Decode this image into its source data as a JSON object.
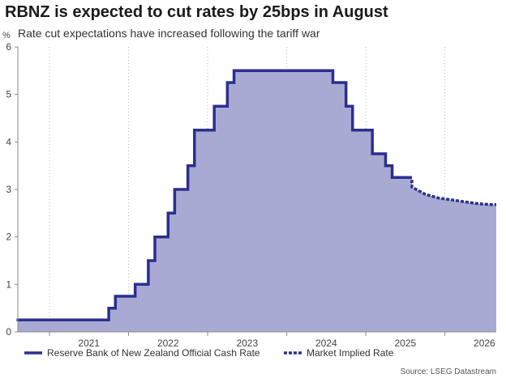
{
  "title": "RBNZ is expected to cut rates by 25bps in August",
  "subtitle": "Rate cut expectations have increased following the tariff war",
  "source": "Source: LSEG Datastream",
  "chart_data": {
    "type": "line",
    "title": "RBNZ is expected to cut rates by 25bps in August",
    "subtitle": "Rate cut expectations have increased following the tariff war",
    "y_unit": "%",
    "ylim": [
      0,
      6
    ],
    "yticks": [
      0,
      1,
      2,
      3,
      4,
      5,
      6
    ],
    "xlim": [
      2020.6,
      2026.65
    ],
    "x_tick_labels": [
      "2021",
      "2022",
      "2023",
      "2024",
      "2025",
      "2026"
    ],
    "grid": "vertical dotted at year boundaries",
    "legend_position": "bottom-left",
    "series": [
      {
        "name": "Reserve Bank of New Zealand Official Cash Rate",
        "style": "solid",
        "color": "#2b2f8f",
        "fill": "#a9aad3",
        "points": [
          [
            "2020-08",
            0.25
          ],
          [
            "2021-08",
            0.25
          ],
          [
            "2021-10",
            0.5
          ],
          [
            "2021-11",
            0.75
          ],
          [
            "2022-02",
            1.0
          ],
          [
            "2022-04",
            1.5
          ],
          [
            "2022-05",
            2.0
          ],
          [
            "2022-07",
            2.5
          ],
          [
            "2022-08",
            3.0
          ],
          [
            "2022-10",
            3.5
          ],
          [
            "2022-11",
            4.25
          ],
          [
            "2023-02",
            4.75
          ],
          [
            "2023-04",
            5.25
          ],
          [
            "2023-05",
            5.5
          ],
          [
            "2024-08",
            5.25
          ],
          [
            "2024-10",
            4.75
          ],
          [
            "2024-11",
            4.25
          ],
          [
            "2025-02",
            3.75
          ],
          [
            "2025-04",
            3.5
          ],
          [
            "2025-05",
            3.25
          ],
          [
            "2025-08",
            3.25
          ]
        ]
      },
      {
        "name": "Market Implied Rate",
        "style": "dotted",
        "color": "#2b2f8f",
        "fill": "#a9aad3",
        "points": [
          [
            "2025-08",
            3.2
          ],
          [
            "2025-08",
            3.05
          ],
          [
            "2025-10",
            2.9
          ],
          [
            "2025-12",
            2.82
          ],
          [
            "2026-02",
            2.78
          ],
          [
            "2026-04",
            2.74
          ],
          [
            "2026-06",
            2.7
          ],
          [
            "2026-08",
            2.68
          ]
        ]
      }
    ]
  },
  "legend": [
    {
      "label": "Reserve Bank of New Zealand Official Cash Rate",
      "style": "solid"
    },
    {
      "label": "Market Implied Rate",
      "style": "dotted"
    }
  ],
  "colors": {
    "line": "#2b2f8f",
    "fill": "#a9aad3",
    "axis": "#888888",
    "grid": "#bbbbbb"
  }
}
